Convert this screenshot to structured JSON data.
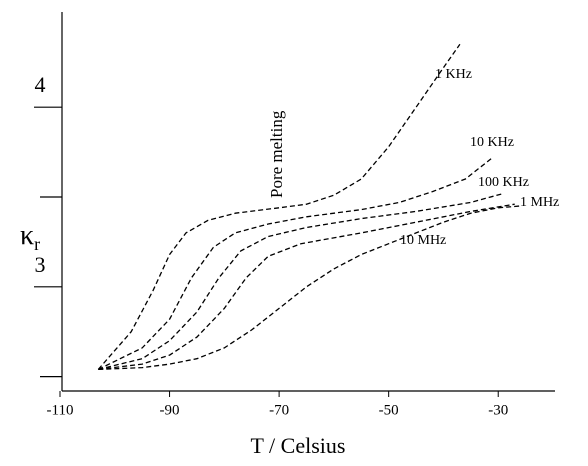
{
  "chart_data": {
    "type": "line",
    "xlabel": "T / Celsius",
    "ylabel": "κ",
    "ylabel_subscript": "r",
    "annotation": "Pore melting",
    "xlim": [
      -110,
      -20
    ],
    "xticks": [
      -110,
      -90,
      -70,
      -50,
      -30
    ],
    "ylim": [
      2.42,
      4.53
    ],
    "yticks": [
      3,
      4
    ],
    "minor_yticks": [
      2.5,
      3.5
    ],
    "dashed": true,
    "series": [
      {
        "name": "1 KHz",
        "color": "#000000",
        "x": [
          -103,
          -97,
          -93,
          -90,
          -87,
          -83,
          -78,
          -70,
          -65,
          -60,
          -55,
          -50,
          -45,
          -40,
          -37
        ],
        "values": [
          2.54,
          2.75,
          2.98,
          3.18,
          3.3,
          3.37,
          3.41,
          3.44,
          3.46,
          3.51,
          3.6,
          3.78,
          4.0,
          4.22,
          4.35
        ]
      },
      {
        "name": "10 KHz",
        "color": "#000000",
        "x": [
          -103,
          -95,
          -90,
          -86,
          -82,
          -78,
          -72,
          -65,
          -55,
          -48,
          -42,
          -36,
          -31
        ],
        "values": [
          2.54,
          2.66,
          2.82,
          3.05,
          3.22,
          3.3,
          3.35,
          3.39,
          3.43,
          3.47,
          3.53,
          3.6,
          3.72
        ]
      },
      {
        "name": "100 KHz",
        "color": "#000000",
        "x": [
          -103,
          -95,
          -90,
          -85,
          -81,
          -77,
          -72,
          -65,
          -55,
          -45,
          -35,
          -29
        ],
        "values": [
          2.54,
          2.6,
          2.7,
          2.86,
          3.05,
          3.2,
          3.28,
          3.33,
          3.38,
          3.42,
          3.47,
          3.52
        ]
      },
      {
        "name": "1 MHz",
        "color": "#000000",
        "x": [
          -103,
          -95,
          -90,
          -85,
          -80,
          -76,
          -72,
          -66,
          -55,
          -45,
          -35,
          -27
        ],
        "values": [
          2.54,
          2.57,
          2.62,
          2.72,
          2.88,
          3.05,
          3.17,
          3.24,
          3.3,
          3.36,
          3.42,
          3.46
        ]
      },
      {
        "name": "10 MHz",
        "color": "#000000",
        "x": [
          -103,
          -95,
          -90,
          -85,
          -80,
          -75,
          -70,
          -65,
          -60,
          -55,
          -50,
          -45,
          -40,
          -35,
          -30,
          -26
        ],
        "values": [
          2.54,
          2.55,
          2.57,
          2.6,
          2.66,
          2.76,
          2.88,
          3.0,
          3.1,
          3.18,
          3.24,
          3.3,
          3.36,
          3.41,
          3.44,
          3.45
        ]
      }
    ]
  }
}
